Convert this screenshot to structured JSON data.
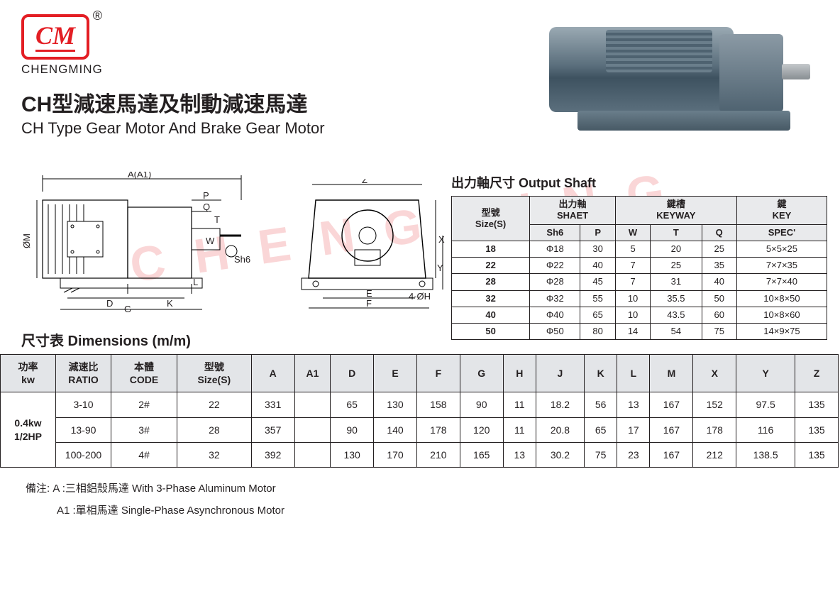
{
  "brand": {
    "logo_text": "CM",
    "reg_mark": "®",
    "name": "CHENGMING",
    "watermark": "CHENGMING"
  },
  "titles": {
    "cn": "CH型減速馬達及制動減速馬達",
    "en": "CH Type Gear Motor And Brake Gear Motor"
  },
  "diagram_labels": {
    "A_A1": "A(A1)",
    "P": "P",
    "Q": "Q",
    "T": "T",
    "W": "W",
    "Sh6": "Sh6",
    "L": "L",
    "D": "D",
    "K": "K",
    "G": "G",
    "OM": "ØM",
    "Z": "Z",
    "X": "X",
    "Y": "Y",
    "E": "E",
    "F": "F",
    "four_phi_H": "4-ØH"
  },
  "shaft_table": {
    "title": "出力軸尺寸 Output Shaft",
    "head": {
      "size_cn": "型號",
      "size_en": "Size(S)",
      "shaft_cn": "出力軸",
      "shaft_en": "SHAET",
      "keyway_cn": "鍵槽",
      "keyway_en": "KEYWAY",
      "key_cn": "鍵",
      "key_en": "KEY",
      "sh6": "Sh6",
      "p": "P",
      "w": "W",
      "t": "T",
      "q": "Q",
      "spec": "SPEC'"
    },
    "rows": [
      {
        "size": "18",
        "sh6": "Φ18",
        "p": "30",
        "w": "5",
        "t": "20",
        "q": "25",
        "spec": "5×5×25"
      },
      {
        "size": "22",
        "sh6": "Φ22",
        "p": "40",
        "w": "7",
        "t": "25",
        "q": "35",
        "spec": "7×7×35"
      },
      {
        "size": "28",
        "sh6": "Φ28",
        "p": "45",
        "w": "7",
        "t": "31",
        "q": "40",
        "spec": "7×7×40"
      },
      {
        "size": "32",
        "sh6": "Φ32",
        "p": "55",
        "w": "10",
        "t": "35.5",
        "q": "50",
        "spec": "10×8×50"
      },
      {
        "size": "40",
        "sh6": "Φ40",
        "p": "65",
        "w": "10",
        "t": "43.5",
        "q": "60",
        "spec": "10×8×60"
      },
      {
        "size": "50",
        "sh6": "Φ50",
        "p": "80",
        "w": "14",
        "t": "54",
        "q": "75",
        "spec": "14×9×75"
      }
    ]
  },
  "dimensions": {
    "title": "尺寸表 Dimensions (m/m)",
    "head": {
      "kw_cn": "功率",
      "kw_en": "kw",
      "ratio_cn": "減速比",
      "ratio_en": "RATIO",
      "code_cn": "本體",
      "code_en": "CODE",
      "size_cn": "型號",
      "size_en": "Size(S)",
      "A": "A",
      "A1": "A1",
      "D": "D",
      "E": "E",
      "F": "F",
      "G": "G",
      "H": "H",
      "J": "J",
      "K": "K",
      "L": "L",
      "M": "M",
      "X": "X",
      "Y": "Y",
      "Z": "Z"
    },
    "power_label_1": "0.4kw",
    "power_label_2": "1/2HP",
    "rows": [
      {
        "ratio": "3-10",
        "code": "2#",
        "size": "22",
        "A": "331",
        "A1": "",
        "D": "65",
        "E": "130",
        "F": "158",
        "G": "90",
        "H": "11",
        "J": "18.2",
        "K": "56",
        "L": "13",
        "M": "167",
        "X": "152",
        "Y": "97.5",
        "Z": "135"
      },
      {
        "ratio": "13-90",
        "code": "3#",
        "size": "28",
        "A": "357",
        "A1": "",
        "D": "90",
        "E": "140",
        "F": "178",
        "G": "120",
        "H": "11",
        "J": "20.8",
        "K": "65",
        "L": "17",
        "M": "167",
        "X": "178",
        "Y": "116",
        "Z": "135"
      },
      {
        "ratio": "100-200",
        "code": "4#",
        "size": "32",
        "A": "392",
        "A1": "",
        "D": "130",
        "E": "170",
        "F": "210",
        "G": "165",
        "H": "13",
        "J": "30.2",
        "K": "75",
        "L": "23",
        "M": "167",
        "X": "212",
        "Y": "138.5",
        "Z": "135"
      }
    ]
  },
  "notes": {
    "prefix": "備注:",
    "a": "A :三相鋁殼馬達 With 3-Phase Aluminum Motor",
    "a1": "A1 :單相馬達 Single-Phase Asynchronous Motor"
  },
  "colors": {
    "accent_red": "#e31e24",
    "border": "#231f20",
    "header_bg": "#e3e5e8",
    "shaft_header_bg": "#e9eaec",
    "motor_metal_light": "#9aa9b3",
    "motor_metal_dark": "#4e6270"
  }
}
